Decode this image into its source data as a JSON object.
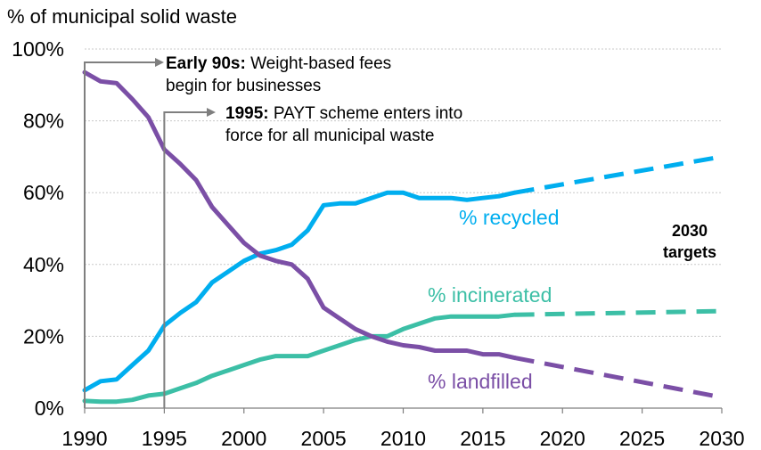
{
  "chart_data": {
    "type": "line",
    "ylabel": "% of municipal solid waste",
    "xlim": [
      1990,
      2030
    ],
    "ylim": [
      0,
      100
    ],
    "x_ticks": [
      1990,
      1995,
      2000,
      2005,
      2010,
      2015,
      2020,
      2025,
      2030
    ],
    "y_ticks": [
      {
        "value": 0,
        "label": "0%"
      },
      {
        "value": 20,
        "label": "20%"
      },
      {
        "value": 40,
        "label": "40%"
      },
      {
        "value": 60,
        "label": "60%"
      },
      {
        "value": 80,
        "label": "80%"
      },
      {
        "value": 100,
        "label": "100%"
      }
    ],
    "grid": true,
    "series": [
      {
        "name": "% recycled",
        "color": "#00AEEF",
        "values": [
          [
            1990,
            5
          ],
          [
            1991,
            7.5
          ],
          [
            1992,
            8
          ],
          [
            1993,
            12
          ],
          [
            1994,
            16
          ],
          [
            1995,
            23
          ],
          [
            1996,
            26.5
          ],
          [
            1997,
            29.5
          ],
          [
            1998,
            35
          ],
          [
            1999,
            38
          ],
          [
            2000,
            41
          ],
          [
            2001,
            43
          ],
          [
            2002,
            44
          ],
          [
            2003,
            45.5
          ],
          [
            2004,
            49.5
          ],
          [
            2005,
            56.5
          ],
          [
            2006,
            57
          ],
          [
            2007,
            57
          ],
          [
            2008,
            58.5
          ],
          [
            2009,
            60
          ],
          [
            2010,
            60
          ],
          [
            2011,
            58.5
          ],
          [
            2012,
            58.5
          ],
          [
            2013,
            58.5
          ],
          [
            2014,
            58
          ],
          [
            2015,
            58.5
          ],
          [
            2016,
            59
          ],
          [
            2017,
            60
          ]
        ],
        "target": [
          [
            2017,
            60
          ],
          [
            2030,
            70
          ]
        ]
      },
      {
        "name": "% incinerated",
        "color": "#3CBFA6",
        "values": [
          [
            1990,
            2
          ],
          [
            1991,
            1.8
          ],
          [
            1992,
            1.8
          ],
          [
            1993,
            2.3
          ],
          [
            1994,
            3.5
          ],
          [
            1995,
            4
          ],
          [
            1996,
            5.5
          ],
          [
            1997,
            7
          ],
          [
            1998,
            9
          ],
          [
            1999,
            10.5
          ],
          [
            2000,
            12
          ],
          [
            2001,
            13.5
          ],
          [
            2002,
            14.5
          ],
          [
            2003,
            14.5
          ],
          [
            2004,
            14.5
          ],
          [
            2005,
            16
          ],
          [
            2006,
            17.5
          ],
          [
            2007,
            19
          ],
          [
            2008,
            20
          ],
          [
            2009,
            20
          ],
          [
            2010,
            22
          ],
          [
            2011,
            23.5
          ],
          [
            2012,
            25
          ],
          [
            2013,
            25.5
          ],
          [
            2014,
            25.5
          ],
          [
            2015,
            25.5
          ],
          [
            2016,
            25.5
          ],
          [
            2017,
            26
          ]
        ],
        "target": [
          [
            2017,
            26
          ],
          [
            2030,
            27
          ]
        ]
      },
      {
        "name": "% landfilled",
        "color": "#7B4FA6",
        "values": [
          [
            1990,
            93.5
          ],
          [
            1991,
            91
          ],
          [
            1992,
            90.5
          ],
          [
            1993,
            86
          ],
          [
            1994,
            81
          ],
          [
            1995,
            72
          ],
          [
            1996,
            68
          ],
          [
            1997,
            63.5
          ],
          [
            1998,
            56
          ],
          [
            1999,
            51
          ],
          [
            2000,
            46
          ],
          [
            2001,
            42.5
          ],
          [
            2002,
            41
          ],
          [
            2003,
            40
          ],
          [
            2004,
            36
          ],
          [
            2005,
            28
          ],
          [
            2006,
            25
          ],
          [
            2007,
            22
          ],
          [
            2008,
            20
          ],
          [
            2009,
            18.5
          ],
          [
            2010,
            17.5
          ],
          [
            2011,
            17
          ],
          [
            2012,
            16
          ],
          [
            2013,
            16
          ],
          [
            2014,
            16
          ],
          [
            2015,
            15
          ],
          [
            2016,
            15
          ],
          [
            2017,
            14
          ]
        ],
        "target": [
          [
            2017,
            14
          ],
          [
            2030,
            3
          ]
        ]
      }
    ],
    "annotations": [
      {
        "year": 1990,
        "bold": "Early 90s:",
        "line1": " Weight-based fees",
        "line2": "begin for businesses"
      },
      {
        "year": 1995,
        "bold": "1995:",
        "line1": " PAYT scheme enters into",
        "line2": "force for all municipal waste"
      }
    ],
    "targets_label": [
      "2030",
      "targets"
    ]
  }
}
